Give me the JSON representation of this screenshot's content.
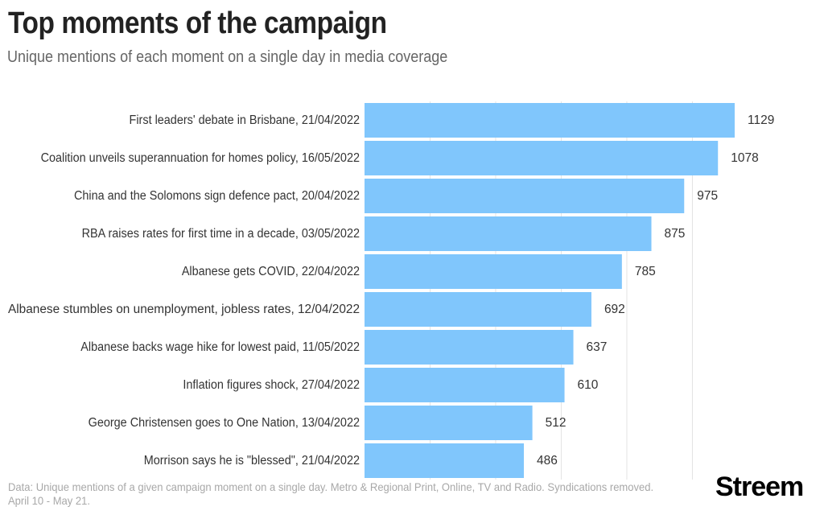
{
  "title": "Top moments of the campaign",
  "subtitle": "Unique mentions of each moment on a single day in media coverage",
  "footnote": "Data: Unique mentions of a given campaign moment on a single day. Metro & Regional Print, Online, TV and Radio. Syndications removed. April 10 - May 21.",
  "brand": "Streem",
  "colors": {
    "bar": "#80c6fc",
    "grid": "#e3e3e3",
    "label": "#333333",
    "value": "#333333"
  },
  "chart_data": {
    "type": "bar",
    "orientation": "horizontal",
    "categories": [
      "First leaders' debate in Brisbane, 21/04/2022",
      "Coalition unveils superannuation for homes policy, 16/05/2022",
      "China and the Solomons sign defence pact, 20/04/2022",
      "RBA raises rates for first time in a decade, 03/05/2022",
      "Albanese gets COVID, 22/04/2022",
      "Albanese stumbles on unemployment, jobless rates, 12/04/2022",
      "Albanese backs wage hike for lowest paid, 11/05/2022",
      "Inflation figures shock, 27/04/2022",
      "George Christensen goes to One Nation, 13/04/2022",
      "Morrison says he is \"blessed\", 21/04/2022"
    ],
    "values": [
      1129,
      1078,
      975,
      875,
      785,
      692,
      637,
      610,
      512,
      486
    ],
    "xlim": [
      0,
      1129
    ],
    "gridlines": [
      200,
      400,
      600,
      800,
      1000
    ],
    "grid": true,
    "data_labels": true
  }
}
